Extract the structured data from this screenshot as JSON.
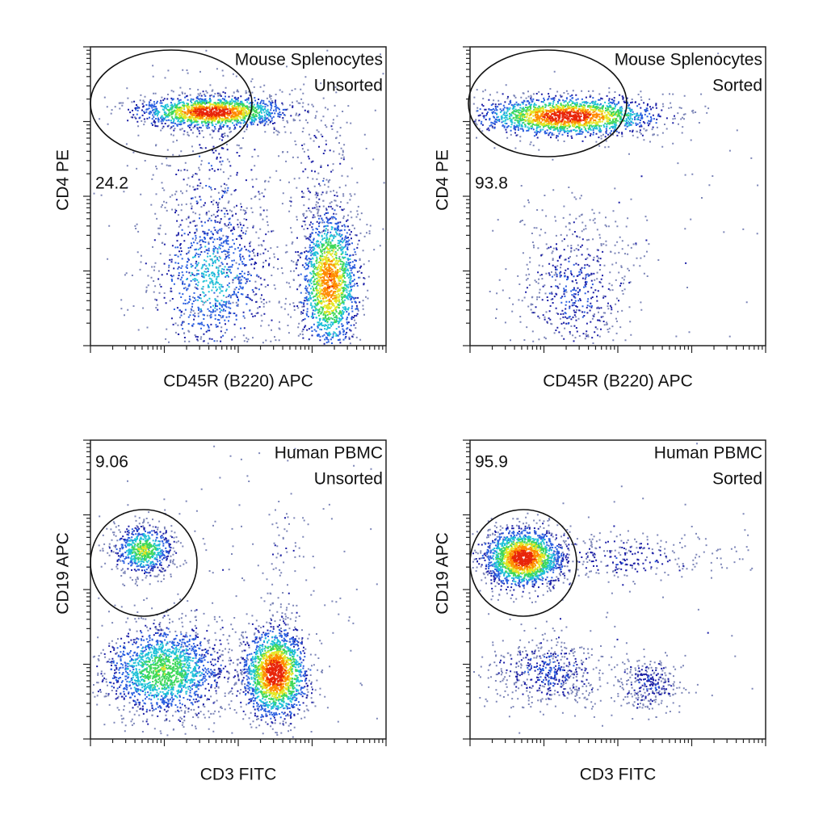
{
  "chart_data": [
    {
      "type": "scatter",
      "title": "Mouse Splenocytes",
      "subtitle": "Unsorted",
      "xlabel": "CD45R (B220) APC",
      "ylabel": "CD4 PE",
      "gate_percent": 24.2
    },
    {
      "type": "scatter",
      "title": "Mouse Splenocytes",
      "subtitle": "Sorted",
      "xlabel": "CD45R (B220) APC",
      "ylabel": "CD4 PE",
      "gate_percent": 93.8
    },
    {
      "type": "scatter",
      "title": "Human PBMC",
      "subtitle": "Unsorted",
      "xlabel": "CD3 FITC",
      "ylabel": "CD19 APC",
      "gate_percent": 9.06
    },
    {
      "type": "scatter",
      "title": "Human PBMC",
      "subtitle": "Sorted",
      "xlabel": "CD3 FITC",
      "ylabel": "CD19 APC",
      "gate_percent": 95.9
    }
  ]
}
